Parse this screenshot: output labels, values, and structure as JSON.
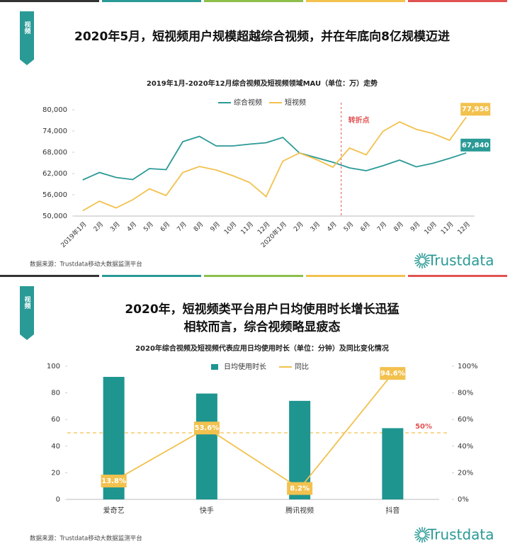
{
  "chart_data": [
    {
      "type": "line",
      "tag": "视频",
      "title": [
        "2020年5月，短视频用户规模超越综合视频，并在年底向8亿规模迈进"
      ],
      "subtitle": "2019年1月-2020年12月综合视频及短视频领域MAU（单位：万）走势",
      "categories": [
        "2019年1月",
        "2月",
        "3月",
        "4月",
        "5月",
        "6月",
        "7月",
        "8月",
        "9月",
        "10月",
        "11月",
        "12月",
        "2020年1月",
        "2月",
        "3月",
        "4月",
        "5月",
        "6月",
        "7月",
        "8月",
        "9月",
        "10月",
        "11月",
        "12月"
      ],
      "series": [
        {
          "name": "综合视频",
          "color": "#2a9a96",
          "values": [
            60200,
            62300,
            60900,
            60300,
            63400,
            63100,
            71000,
            72500,
            69800,
            69800,
            70300,
            70700,
            72200,
            67800,
            66500,
            65200,
            63600,
            62800,
            64200,
            65800,
            63900,
            64900,
            66300,
            67840
          ],
          "value_labels": [
            null,
            null,
            null,
            null,
            null,
            null,
            null,
            null,
            null,
            null,
            null,
            null,
            null,
            null,
            null,
            null,
            null,
            null,
            null,
            null,
            null,
            null,
            null,
            "67,840"
          ]
        },
        {
          "name": "短视频",
          "color": "#f2c14e",
          "values": [
            51500,
            54200,
            52300,
            54600,
            57700,
            55800,
            62300,
            64000,
            63000,
            61400,
            59500,
            55500,
            65500,
            67800,
            66000,
            63800,
            69200,
            67300,
            73900,
            76600,
            74500,
            73300,
            71400,
            77956
          ],
          "value_labels": [
            null,
            null,
            null,
            null,
            null,
            null,
            null,
            null,
            null,
            null,
            null,
            null,
            null,
            null,
            null,
            null,
            null,
            null,
            null,
            null,
            null,
            null,
            null,
            "77,956"
          ]
        }
      ],
      "ylim": [
        50000,
        80000
      ],
      "yticks": [
        {
          "value": 50000,
          "label": "50,000"
        },
        {
          "value": 56000,
          "label": "56,000"
        },
        {
          "value": 62000,
          "label": "62,000"
        },
        {
          "value": 68000,
          "label": "68,000"
        },
        {
          "value": 74000,
          "label": "74,000"
        },
        {
          "value": 80000,
          "label": "80,000"
        }
      ],
      "annotation": {
        "text": "转折点",
        "category_index": 15,
        "color": "#e05252"
      },
      "source": "数据来源：Trustdata移动大数据监测平台",
      "logo": "Trustdata"
    },
    {
      "type": "combo",
      "tag": "视频",
      "title": [
        "2020年，短视频类平台用户日均使用时长增长迅猛",
        "相较而言，综合视频略显疲态"
      ],
      "subtitle": "2020年综合视频及短视频代表应用日均使用时长（单位：分钟）及同比变化情况",
      "categories": [
        "爱奇艺",
        "快手",
        "腾讯视频",
        "抖音"
      ],
      "series": [
        {
          "name": "日均使用时长",
          "type": "bar",
          "color": "#1f9590",
          "values": [
            92,
            79.5,
            74,
            53.5
          ]
        },
        {
          "name": "同比",
          "type": "line",
          "axis": "y2",
          "color": "#f2c14e",
          "values": [
            13.8,
            53.6,
            8.2,
            94.6
          ],
          "value_labels": [
            "13.8%",
            "53.6%",
            "8.2%",
            "94.6%"
          ]
        }
      ],
      "ylim": [
        0,
        100
      ],
      "yticks": [
        0,
        20,
        40,
        60,
        80,
        100
      ],
      "y2lim": [
        0,
        100
      ],
      "y2ticks": [
        {
          "value": 0,
          "label": "0%"
        },
        {
          "value": 20,
          "label": "20%"
        },
        {
          "value": 40,
          "label": "40%"
        },
        {
          "value": 60,
          "label": "60%"
        },
        {
          "value": 80,
          "label": "80%"
        },
        {
          "value": 100,
          "label": "100%"
        }
      ],
      "reference_line": {
        "value": 50,
        "axis": "y2",
        "label": "50%",
        "color": "#f2c14e",
        "label_color": "#e05252"
      },
      "source": "数据来源：Trustdata移动大数据监测平台",
      "logo": "Trustdata"
    }
  ]
}
